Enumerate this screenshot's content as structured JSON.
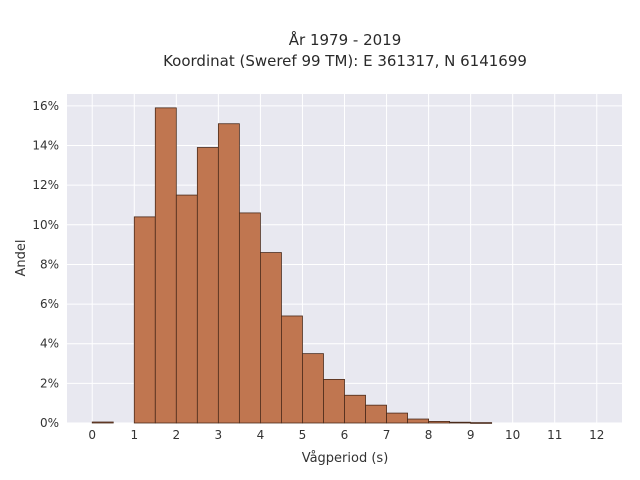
{
  "chart_data": {
    "type": "bar",
    "title_line1": "År 1979 - 2019",
    "title_line2": "Koordinat (Sweref 99 TM): E 361317, N 6141699",
    "xlabel": "Vågperiod (s)",
    "ylabel": "Andel",
    "xlim": [
      -0.6,
      12.6
    ],
    "ylim": [
      0,
      16.6
    ],
    "grid": true,
    "x_ticks": [
      0,
      1,
      2,
      3,
      4,
      5,
      6,
      7,
      8,
      9,
      10,
      11,
      12
    ],
    "x_tick_labels": [
      "0",
      "1",
      "2",
      "3",
      "4",
      "5",
      "6",
      "7",
      "8",
      "9",
      "10",
      "11",
      "12"
    ],
    "y_ticks": [
      0,
      2,
      4,
      6,
      8,
      10,
      12,
      14,
      16
    ],
    "y_tick_labels": [
      "0%",
      "2%",
      "4%",
      "6%",
      "8%",
      "10%",
      "12%",
      "14%",
      "16%"
    ],
    "bin_width": 0.5,
    "bins": [
      {
        "start": 0.0,
        "value": 0.05
      },
      {
        "start": 1.0,
        "value": 10.4
      },
      {
        "start": 1.5,
        "value": 15.9
      },
      {
        "start": 2.0,
        "value": 11.5
      },
      {
        "start": 2.5,
        "value": 13.9
      },
      {
        "start": 3.0,
        "value": 15.1
      },
      {
        "start": 3.5,
        "value": 10.6
      },
      {
        "start": 4.0,
        "value": 8.6
      },
      {
        "start": 4.5,
        "value": 5.4
      },
      {
        "start": 5.0,
        "value": 3.5
      },
      {
        "start": 5.5,
        "value": 2.2
      },
      {
        "start": 6.0,
        "value": 1.4
      },
      {
        "start": 6.5,
        "value": 0.9
      },
      {
        "start": 7.0,
        "value": 0.5
      },
      {
        "start": 7.5,
        "value": 0.2
      },
      {
        "start": 8.0,
        "value": 0.08
      },
      {
        "start": 8.5,
        "value": 0.04
      },
      {
        "start": 9.0,
        "value": 0.02
      }
    ],
    "colors": {
      "bar_fill": "#c07650",
      "bar_edge": "#4a2a1a",
      "plot_bg": "#e8e8f0",
      "grid": "#ffffff"
    }
  }
}
